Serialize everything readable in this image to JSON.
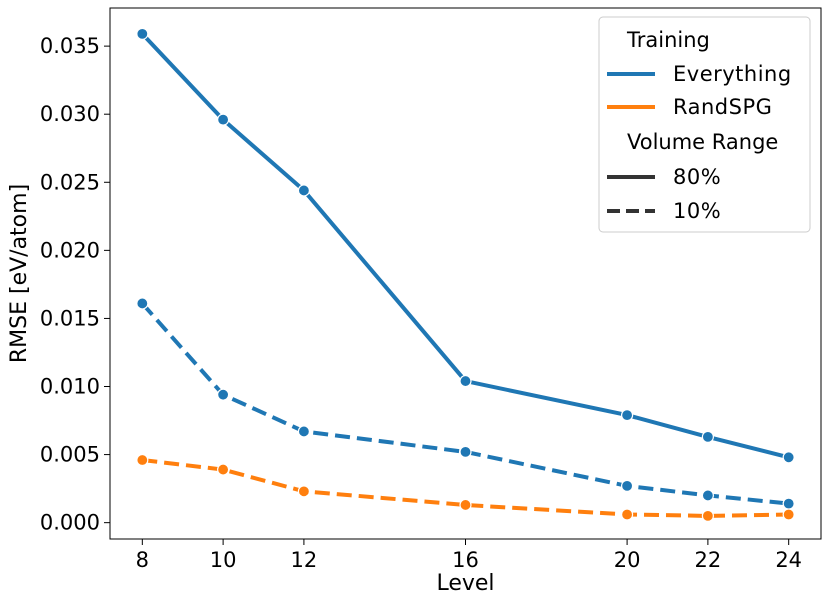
{
  "chart_data": {
    "type": "line",
    "xlabel": "Level",
    "ylabel": "RMSE [eV/atom]",
    "x": [
      8,
      10,
      12,
      16,
      20,
      22,
      24
    ],
    "x_ticks": [
      "8",
      "10",
      "12",
      "16",
      "20",
      "22",
      "24"
    ],
    "xlim": [
      7.2,
      24.8
    ],
    "ylim": [
      -0.0012,
      0.0378
    ],
    "y_ticks": [
      "0.000",
      "0.005",
      "0.010",
      "0.015",
      "0.020",
      "0.025",
      "0.030",
      "0.035"
    ],
    "y_tick_values": [
      0,
      0.005,
      0.01,
      0.015,
      0.02,
      0.025,
      0.03,
      0.035
    ],
    "grid": false,
    "series": [
      {
        "name": "Everything 80%",
        "training": "Everything",
        "volume_range": "80%",
        "color": "#1f77b4",
        "style": "solid",
        "values": [
          0.0359,
          0.0296,
          0.0244,
          0.0104,
          0.0079,
          0.0063,
          0.0048
        ]
      },
      {
        "name": "Everything 10%",
        "training": "Everything",
        "volume_range": "10%",
        "color": "#1f77b4",
        "style": "dashed",
        "values": [
          0.0161,
          0.0094,
          0.0067,
          0.0052,
          0.0027,
          0.002,
          0.0014
        ]
      },
      {
        "name": "RandSPG 10%",
        "training": "RandSPG",
        "volume_range": "10%",
        "color": "#ff7f0e",
        "style": "dashed",
        "values": [
          0.0046,
          0.0039,
          0.0023,
          0.0013,
          0.0006,
          0.0005,
          0.0006
        ]
      }
    ],
    "legend": {
      "placement": "top-right",
      "hue_title": "Training",
      "hue_entries": [
        {
          "label": "Everything",
          "color": "#1f77b4"
        },
        {
          "label": "RandSPG",
          "color": "#ff7f0e"
        }
      ],
      "style_title": "Volume Range",
      "style_entries": [
        {
          "label": "80%",
          "style": "solid",
          "color": "#333333"
        },
        {
          "label": "10%",
          "style": "dashed",
          "color": "#333333"
        }
      ]
    }
  }
}
